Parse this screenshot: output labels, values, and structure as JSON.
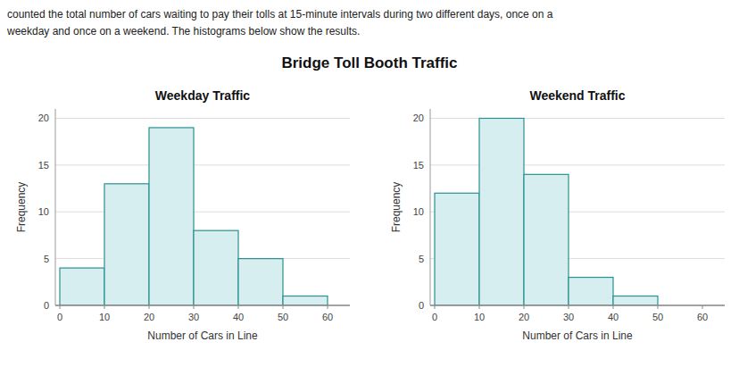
{
  "title": "Bridge Toll Booth Traffic",
  "annotations": [
    "counted the total number of cars waiting to pay their tolls at 15-minute intervals during two different days, once on a",
    "weekday and once on a weekend. The histograms below show the results."
  ],
  "chart_data": [
    {
      "type": "histogram",
      "title": "Weekday Traffic",
      "xlabel": "Number of Cars in Line",
      "ylabel": "Frequency",
      "bins": [
        0,
        10,
        20,
        30,
        40,
        50,
        60
      ],
      "values": [
        4,
        13,
        19,
        8,
        5,
        1
      ],
      "color": "#d6eef0",
      "xlim": [
        -1,
        65
      ],
      "xticks": [
        0,
        10,
        20,
        30,
        40,
        50,
        60
      ],
      "ylim": [
        0,
        21
      ],
      "yticks": [
        0,
        5,
        10,
        15,
        20
      ],
      "grid": true
    },
    {
      "type": "histogram",
      "title": "Weekend Traffic",
      "xlabel": "Number of Cars in Line",
      "ylabel": "Frequency",
      "bins": [
        0,
        10,
        20,
        30,
        40,
        50,
        60
      ],
      "values": [
        12,
        20,
        14,
        3,
        1,
        0
      ],
      "color": "#d6eef0",
      "xlim": [
        -1,
        65
      ],
      "xticks": [
        0,
        10,
        20,
        30,
        40,
        50,
        60
      ],
      "ylim": [
        0,
        21
      ],
      "yticks": [
        0,
        5,
        10,
        15,
        20
      ],
      "grid": true
    }
  ]
}
